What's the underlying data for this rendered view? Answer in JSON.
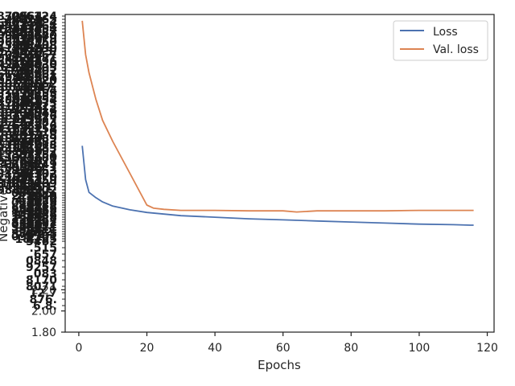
{
  "chart_data": {
    "type": "line",
    "xlabel": "Epochs",
    "ylabel": "Negative log-likelihood",
    "xlim": [
      -4,
      122
    ],
    "ylim": [
      1.8,
      4.8
    ],
    "x_ticks": [
      "0",
      "20",
      "40",
      "60",
      "80",
      "100",
      "120"
    ],
    "x_tick_values": [
      0,
      20,
      40,
      60,
      80,
      100,
      120
    ],
    "y_tick_labels": [
      "1.80",
      "2.00",
      "2.20"
    ],
    "y_tick_values": [
      1.8,
      2.0,
      2.2
    ],
    "legend_position": "top-right",
    "series": [
      {
        "name": "Loss",
        "color": "#4c72b0",
        "x": [
          1,
          2,
          3,
          5,
          7,
          10,
          15,
          20,
          25,
          30,
          40,
          50,
          60,
          70,
          80,
          90,
          100,
          110,
          115,
          116
        ],
        "y": [
          3.56,
          3.24,
          3.12,
          3.07,
          3.03,
          2.99,
          2.955,
          2.93,
          2.915,
          2.9,
          2.885,
          2.87,
          2.86,
          2.85,
          2.84,
          2.83,
          2.82,
          2.815,
          2.81,
          2.81
        ]
      },
      {
        "name": "Val. loss",
        "color": "#dd8452",
        "x": [
          1,
          2,
          3,
          5,
          7,
          10,
          15,
          20,
          22,
          25,
          30,
          35,
          40,
          50,
          60,
          64,
          70,
          80,
          90,
          100,
          110,
          116
        ],
        "y": [
          4.74,
          4.42,
          4.25,
          4.0,
          3.8,
          3.6,
          3.3,
          3.0,
          2.97,
          2.96,
          2.95,
          2.95,
          2.95,
          2.945,
          2.945,
          2.935,
          2.945,
          2.945,
          2.945,
          2.95,
          2.95,
          2.95
        ]
      }
    ]
  }
}
